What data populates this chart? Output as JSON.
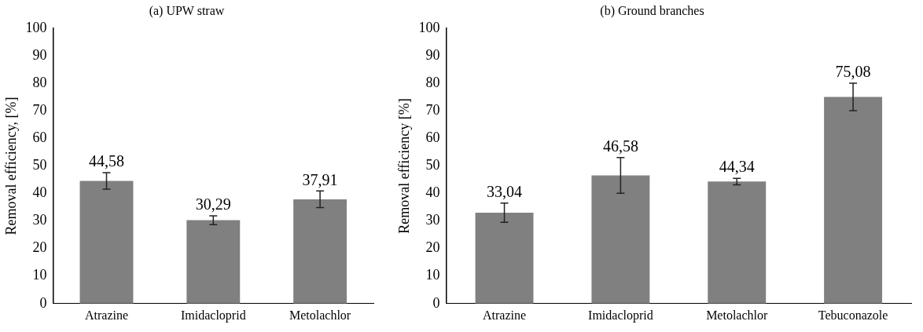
{
  "chart_data": [
    {
      "type": "bar",
      "title": "(a) UPW straw",
      "ylabel": "Removal efficiency, [%]",
      "categories": [
        "Atrazine",
        "Imidacloprid",
        "Metolachlor"
      ],
      "series": [
        {
          "color": "#808080",
          "values": [
            44.58,
            30.29,
            37.91
          ],
          "errors": [
            3,
            1.6,
            3
          ],
          "value_labels": [
            "44,58",
            "30,29",
            "37,91"
          ]
        }
      ],
      "ylim": [
        0,
        100
      ],
      "yticks": [
        0,
        10,
        20,
        30,
        40,
        50,
        60,
        70,
        80,
        90,
        100
      ],
      "grid": false,
      "legend": false
    },
    {
      "type": "bar",
      "title": "(b) Ground branches",
      "ylabel": "Removal efficiency [%]",
      "categories": [
        "Atrazine",
        "Imidacloprid",
        "Metolachlor",
        "Tebuconazole"
      ],
      "series": [
        {
          "color": "#808080",
          "values": [
            33.04,
            46.58,
            44.34,
            75.08
          ],
          "errors": [
            3.5,
            6.5,
            1.2,
            5
          ],
          "value_labels": [
            "33,04",
            "46,58",
            "44,34",
            "75,08"
          ]
        }
      ],
      "ylim": [
        0,
        100
      ],
      "yticks": [
        0,
        10,
        20,
        30,
        40,
        50,
        60,
        70,
        80,
        90,
        100
      ],
      "grid": false,
      "legend": false
    }
  ]
}
